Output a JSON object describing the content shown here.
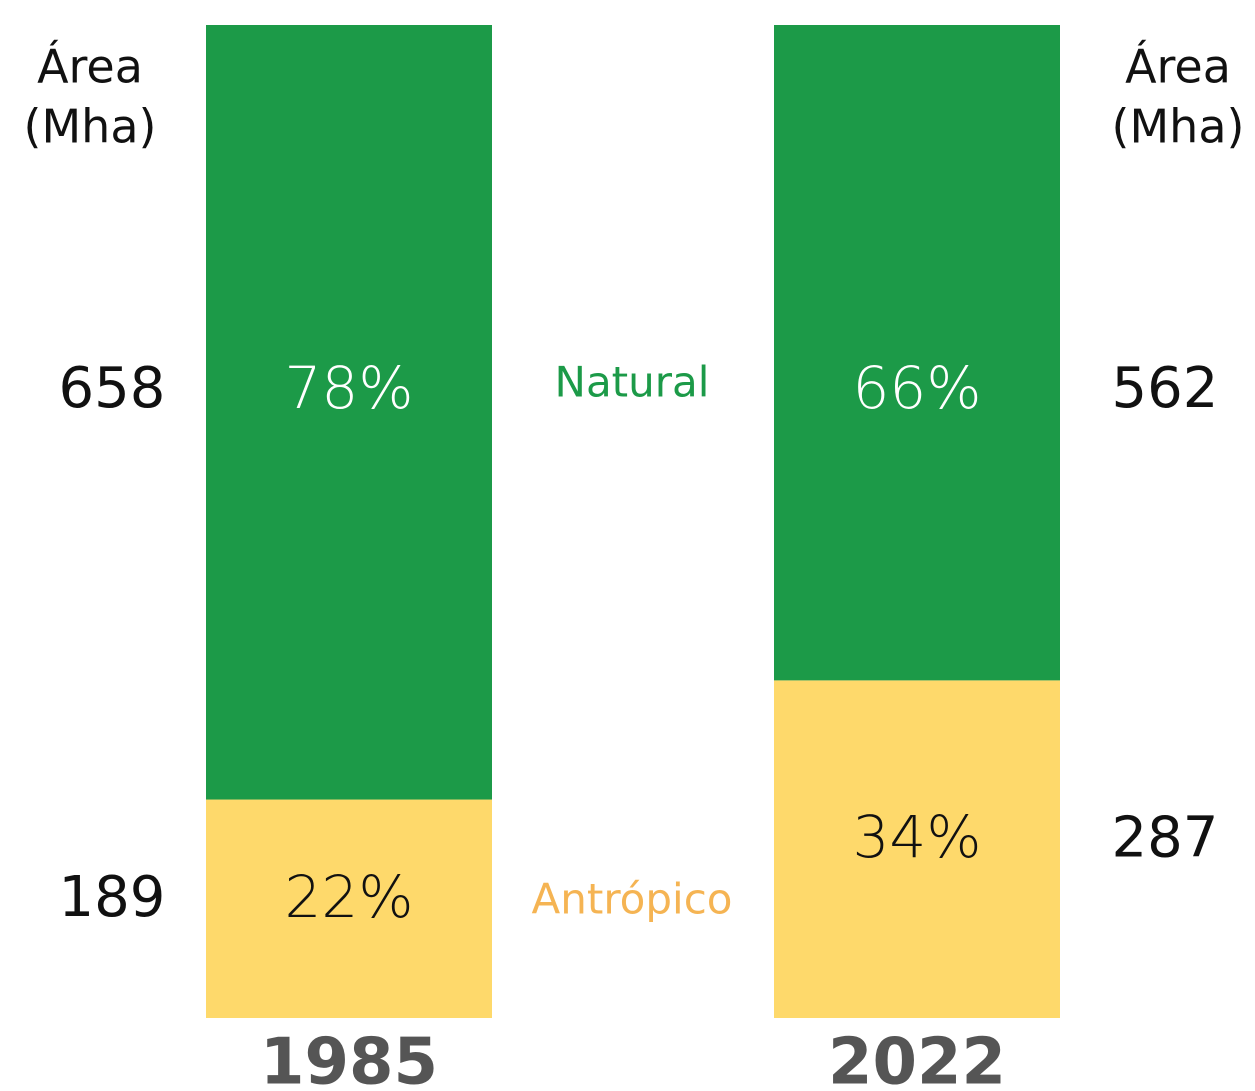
{
  "chart_data": {
    "type": "stacked_bar",
    "categories": [
      "1985",
      "2022"
    ],
    "ylim": [
      0,
      100
    ],
    "area_label": [
      "Área",
      "(Mha)"
    ],
    "series": [
      {
        "name": "Antrópico",
        "color": "#fed96b",
        "text_color": "#f5b453",
        "values": [
          22,
          34
        ],
        "value_labels": [
          "22%",
          "34%"
        ],
        "area": [
          189,
          287
        ]
      },
      {
        "name": "Natural",
        "color": "#1c9a48",
        "text_color": "#1c9a48",
        "values": [
          78,
          66
        ],
        "value_labels": [
          "78%",
          "66%"
        ],
        "area": [
          658,
          562
        ]
      }
    ]
  }
}
